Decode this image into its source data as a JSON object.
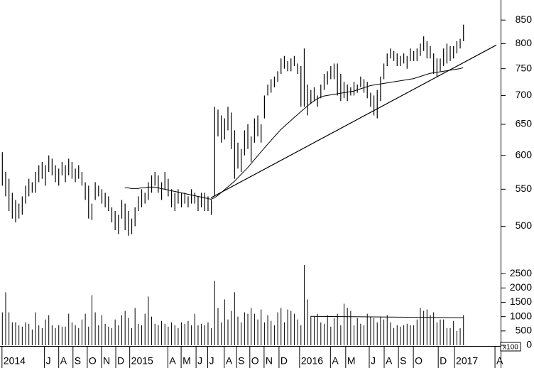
{
  "chart_data": [
    {
      "type": "ohlc",
      "high": [
        605,
        575,
        565,
        545,
        535,
        530,
        540,
        555,
        565,
        560,
        575,
        585,
        590,
        585,
        600,
        595,
        585,
        580,
        590,
        585,
        595,
        590,
        580,
        585,
        575,
        560,
        555,
        530,
        560,
        555,
        550,
        545,
        540,
        525,
        520,
        515,
        535,
        530,
        520,
        510,
        525,
        540,
        550,
        545,
        560,
        570,
        575,
        570,
        560,
        575,
        565,
        550,
        545,
        550,
        545,
        545,
        540,
        550,
        545,
        540,
        545,
        545,
        540,
        535,
        680,
        675,
        665,
        660,
        680,
        670,
        640,
        620,
        610,
        640,
        650,
        630,
        660,
        665,
        650,
        700,
        720,
        730,
        735,
        745,
        770,
        775,
        765,
        770,
        775,
        760,
        755,
        790,
        720,
        710,
        715,
        700,
        720,
        740,
        745,
        755,
        760,
        760,
        740,
        725,
        720,
        715,
        725,
        720,
        735,
        730,
        725,
        705,
        700,
        710,
        735,
        760,
        780,
        790,
        785,
        780,
        775,
        780,
        775,
        790,
        785,
        790,
        800,
        815,
        805,
        795,
        780,
        770,
        770,
        790,
        800,
        795,
        795,
        805,
        810,
        840
      ],
      "low": [
        555,
        540,
        520,
        510,
        505,
        510,
        515,
        530,
        540,
        545,
        545,
        560,
        565,
        555,
        575,
        570,
        560,
        555,
        570,
        560,
        570,
        565,
        560,
        565,
        555,
        535,
        510,
        508,
        535,
        540,
        530,
        525,
        520,
        505,
        495,
        490,
        510,
        495,
        488,
        490,
        500,
        520,
        525,
        530,
        535,
        545,
        555,
        545,
        535,
        550,
        540,
        525,
        520,
        530,
        525,
        530,
        525,
        530,
        530,
        520,
        525,
        520,
        520,
        515,
        540,
        630,
        620,
        625,
        640,
        610,
        565,
        580,
        575,
        600,
        610,
        590,
        620,
        630,
        620,
        660,
        700,
        705,
        715,
        725,
        740,
        750,
        745,
        745,
        755,
        740,
        680,
        680,
        665,
        685,
        690,
        680,
        695,
        710,
        720,
        730,
        730,
        700,
        690,
        695,
        690,
        700,
        700,
        705,
        715,
        705,
        695,
        680,
        665,
        660,
        690,
        730,
        755,
        770,
        765,
        755,
        755,
        760,
        750,
        765,
        765,
        765,
        775,
        785,
        770,
        770,
        740,
        735,
        745,
        755,
        760,
        765,
        770,
        780,
        790,
        805
      ],
      "ma": [
        null,
        null,
        null,
        null,
        null,
        null,
        null,
        null,
        null,
        null,
        null,
        null,
        null,
        null,
        null,
        null,
        null,
        null,
        null,
        null,
        null,
        null,
        null,
        null,
        null,
        null,
        null,
        null,
        null,
        null,
        null,
        null,
        null,
        null,
        null,
        null,
        null,
        552,
        552,
        551,
        551,
        551,
        552,
        552,
        553,
        553,
        553,
        552,
        551,
        550,
        549,
        548,
        547,
        546,
        545,
        544,
        543,
        542,
        541,
        540,
        539,
        538,
        537,
        536,
        538,
        541,
        545,
        549,
        553,
        557,
        561,
        566,
        571,
        576,
        581,
        587,
        593,
        599,
        605,
        611,
        617,
        623,
        629,
        635,
        641,
        646,
        651,
        656,
        661,
        666,
        671,
        676,
        681,
        686,
        690,
        694,
        697,
        699,
        700,
        701,
        702,
        703,
        704,
        705,
        706,
        707,
        708,
        710,
        712,
        714,
        716,
        718,
        719,
        720,
        721,
        722,
        723,
        724,
        725,
        726,
        727,
        728,
        729,
        730,
        731,
        733,
        735,
        737,
        739,
        741,
        742,
        743,
        744,
        745,
        746,
        747,
        748,
        749,
        750,
        752
      ],
      "trendline": {
        "x": [
          63,
          149
        ],
        "values": [
          538,
          797
        ]
      },
      "color": "#000000",
      "log_scale": true,
      "ylim": [
        472,
        895
      ],
      "yticks": [
        500,
        550,
        600,
        650,
        700,
        750,
        800,
        850
      ],
      "xlim": [
        -0.6,
        150.3
      ],
      "xticks": [
        {
          "value": 0,
          "label": "2014"
        },
        {
          "value": 12.8,
          "label": "J"
        },
        {
          "value": 17.1,
          "label": "A"
        },
        {
          "value": 21.4,
          "label": "S"
        },
        {
          "value": 25.7,
          "label": "O"
        },
        {
          "value": 30,
          "label": "N"
        },
        {
          "value": 34.3,
          "label": "D"
        },
        {
          "value": 38.5,
          "label": "2015"
        },
        {
          "value": 50,
          "label": "A"
        },
        {
          "value": 54,
          "label": "M"
        },
        {
          "value": 58.5,
          "label": "J"
        },
        {
          "value": 62,
          "label": "J"
        },
        {
          "value": 67,
          "label": "A"
        },
        {
          "value": 70.7,
          "label": "S"
        },
        {
          "value": 74.7,
          "label": "O"
        },
        {
          "value": 79,
          "label": "N"
        },
        {
          "value": 83.5,
          "label": "D"
        },
        {
          "value": 89.7,
          "label": "2016"
        },
        {
          "value": 99,
          "label": "A"
        },
        {
          "value": 103.6,
          "label": "M"
        },
        {
          "value": 110.7,
          "label": "J"
        },
        {
          "value": 115.2,
          "label": "A"
        },
        {
          "value": 119.5,
          "label": "S"
        },
        {
          "value": 124,
          "label": "O"
        },
        {
          "value": 131.5,
          "label": "D"
        },
        {
          "value": 136.4,
          "label": "2017"
        },
        {
          "value": 148.6,
          "label": "A"
        }
      ]
    },
    {
      "type": "bar",
      "values": [
        1150,
        1850,
        1150,
        800,
        800,
        700,
        650,
        800,
        750,
        550,
        1150,
        700,
        600,
        900,
        1050,
        700,
        600,
        700,
        650,
        650,
        1100,
        800,
        700,
        600,
        900,
        1100,
        650,
        1750,
        1150,
        700,
        1050,
        750,
        650,
        600,
        900,
        700,
        1050,
        1200,
        950,
        600,
        1300,
        750,
        700,
        1100,
        1700,
        1000,
        750,
        700,
        850,
        750,
        650,
        800,
        700,
        600,
        800,
        750,
        850,
        700,
        1100,
        700,
        750,
        700,
        800,
        600,
        2250,
        1300,
        800,
        1600,
        900,
        1200,
        1850,
        1000,
        800,
        1150,
        1100,
        1300,
        1100,
        900,
        1250,
        800,
        1050,
        850,
        700,
        1150,
        1300,
        800,
        1250,
        1200,
        1100,
        900,
        700,
        2800,
        1600,
        1000,
        1000,
        1100,
        800,
        750,
        1050,
        650,
        950,
        1100,
        700,
        1450,
        1300,
        1200,
        700,
        950,
        750,
        700,
        1100,
        1000,
        950,
        800,
        1000,
        900,
        1050,
        800,
        600,
        700,
        650,
        700,
        750,
        700,
        700,
        900,
        1300,
        1200,
        1250,
        1050,
        1150,
        800,
        900,
        900,
        600,
        600,
        850,
        500,
        600,
        1050
      ],
      "average": {
        "x": [
          93,
          139
        ],
        "values": [
          1010,
          960
        ]
      },
      "color": "#000000",
      "ylim": [
        0,
        3000
      ],
      "yticks": [
        0,
        500,
        1000,
        1500,
        2000,
        2500
      ],
      "unit_label": "x100"
    }
  ]
}
